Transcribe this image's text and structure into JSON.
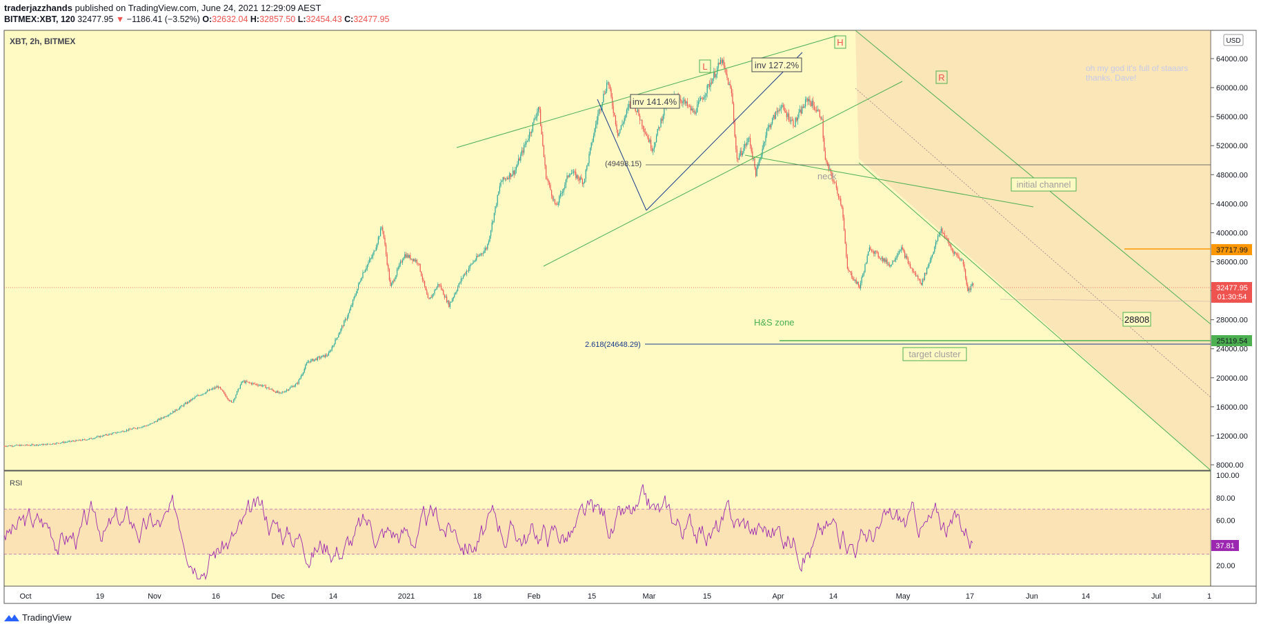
{
  "header": {
    "author": "traderjazzhands",
    "published": "published on TradingView.com, June 24, 2021 12:29:09 AEST",
    "symbol": "BITMEX:XBT, 120",
    "last": "32477.95",
    "change_arrow": "▼",
    "change": "−1186.41 (−3.52%)",
    "o_label": "O:",
    "o": "32632.04",
    "h_label": "H:",
    "h": "32857.50",
    "l_label": "L:",
    "l": "32454.43",
    "c_label": "C:",
    "c": "32477.95"
  },
  "chart_title": "XBT, 2h, BITMEX",
  "currency": "USD",
  "footer": {
    "brand": "TradingView",
    "icon": "tradingview-logo-icon"
  },
  "colors": {
    "background": "#fff9c4",
    "up": "#26a69a",
    "down": "#ef5350",
    "trendline": "#4caf50",
    "rsi": "#9c27b0",
    "fib": "#1a3a8a",
    "orange": "#ff9800"
  },
  "chart_data": {
    "type": "candlestick",
    "symbol": "XBT",
    "interval": "2h",
    "exchange": "BITMEX",
    "x_ticks": [
      "Oct",
      "19",
      "Nov",
      "16",
      "Dec",
      "14",
      "2021",
      "18",
      "Feb",
      "15",
      "Mar",
      "15",
      "Apr",
      "14",
      "May",
      "17",
      "Jun",
      "14",
      "Jul",
      "1"
    ],
    "y_ticks": [
      8000,
      12000,
      16000,
      20000,
      24000,
      28000,
      32000,
      36000,
      40000,
      44000,
      48000,
      52000,
      56000,
      60000,
      64000
    ],
    "y_tick_labels": [
      "8000.00",
      "12000.00",
      "16000.00",
      "20000.00",
      "24000.00",
      "28000.00",
      "32000.00",
      "36000.00",
      "40000.00",
      "44000.00",
      "48000.00",
      "52000.00",
      "56000.00",
      "60000.00",
      "64000.00"
    ],
    "ylim": [
      6000,
      66000
    ],
    "price_path": [
      [
        0,
        10600
      ],
      [
        60,
        10800
      ],
      [
        120,
        11500
      ],
      [
        170,
        12600
      ],
      [
        210,
        13500
      ],
      [
        245,
        15300
      ],
      [
        280,
        17500
      ],
      [
        310,
        18800
      ],
      [
        330,
        16500
      ],
      [
        345,
        19500
      ],
      [
        375,
        18900
      ],
      [
        400,
        17800
      ],
      [
        425,
        19200
      ],
      [
        440,
        22200
      ],
      [
        470,
        23200
      ],
      [
        500,
        29000
      ],
      [
        520,
        34500
      ],
      [
        535,
        37000
      ],
      [
        548,
        41000
      ],
      [
        560,
        32500
      ],
      [
        580,
        37000
      ],
      [
        600,
        36000
      ],
      [
        615,
        30500
      ],
      [
        630,
        33000
      ],
      [
        645,
        30000
      ],
      [
        665,
        34000
      ],
      [
        680,
        36000
      ],
      [
        700,
        38000
      ],
      [
        720,
        47000
      ],
      [
        740,
        48500
      ],
      [
        765,
        54500
      ],
      [
        775,
        57500
      ],
      [
        785,
        48000
      ],
      [
        800,
        43500
      ],
      [
        820,
        48500
      ],
      [
        840,
        47000
      ],
      [
        860,
        56000
      ],
      [
        875,
        61000
      ],
      [
        890,
        53500
      ],
      [
        910,
        58500
      ],
      [
        925,
        55000
      ],
      [
        940,
        51500
      ],
      [
        960,
        58000
      ],
      [
        975,
        59000
      ],
      [
        1000,
        56500
      ],
      [
        1020,
        60000
      ],
      [
        1040,
        63800
      ],
      [
        1055,
        59000
      ],
      [
        1062,
        50000
      ],
      [
        1080,
        53000
      ],
      [
        1090,
        48000
      ],
      [
        1105,
        54000
      ],
      [
        1125,
        57500
      ],
      [
        1145,
        55000
      ],
      [
        1165,
        58500
      ],
      [
        1185,
        56000
      ],
      [
        1190,
        50000
      ],
      [
        1205,
        46500
      ],
      [
        1215,
        43500
      ],
      [
        1222,
        35000
      ],
      [
        1240,
        32500
      ],
      [
        1255,
        38000
      ],
      [
        1265,
        37000
      ],
      [
        1285,
        35500
      ],
      [
        1300,
        38000
      ],
      [
        1315,
        35000
      ],
      [
        1330,
        33000
      ],
      [
        1345,
        37000
      ],
      [
        1358,
        40500
      ],
      [
        1375,
        37500
      ],
      [
        1390,
        36000
      ],
      [
        1397,
        32000
      ],
      [
        1405,
        33000
      ]
    ],
    "annotations": [
      {
        "text": "L",
        "type": "pivot-label"
      },
      {
        "text": "H",
        "type": "pivot-label"
      },
      {
        "text": "R",
        "type": "pivot-label"
      },
      {
        "text": "inv 141.4%",
        "type": "box"
      },
      {
        "text": "inv 127.2%",
        "type": "box"
      },
      {
        "text": "(49498.15)",
        "type": "level-label"
      },
      {
        "text": "neck",
        "type": "label"
      },
      {
        "text": "initial channel",
        "type": "box"
      },
      {
        "text": "H&S zone",
        "type": "label"
      },
      {
        "text": "2.618(24648.29)",
        "type": "level-label"
      },
      {
        "text": "target cluster",
        "type": "box"
      },
      {
        "text": "28808",
        "type": "box"
      },
      {
        "text": "oh my god it's full of staaars",
        "type": "note"
      },
      {
        "text": "thanks, Dave!",
        "type": "note"
      }
    ],
    "price_badges": [
      {
        "value": "37717.99",
        "color": "#ff9800"
      },
      {
        "value": "32477.95",
        "color": "#ef5350"
      },
      {
        "value": "01:30:54",
        "color": "#ef5350"
      },
      {
        "value": "25119.54",
        "color": "#4caf50"
      }
    ],
    "rsi": {
      "label": "RSI",
      "y_ticks": [
        "100.00",
        "80.00",
        "60.00",
        "20.00"
      ],
      "band": [
        30,
        70
      ],
      "last": "37.81",
      "ylim": [
        0,
        100
      ]
    }
  }
}
